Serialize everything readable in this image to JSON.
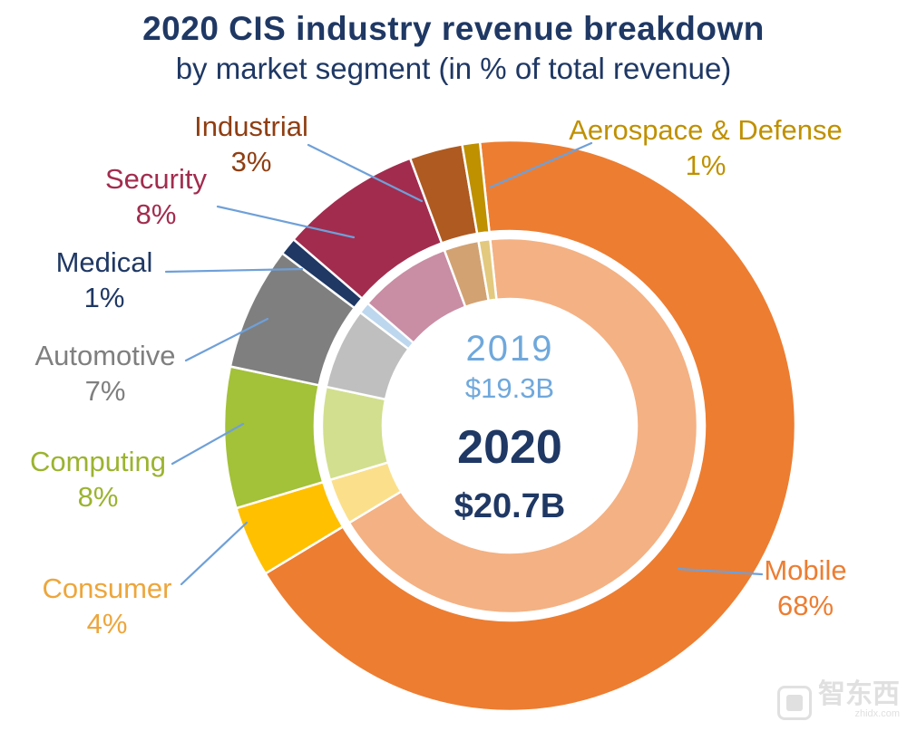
{
  "chart_data": {
    "type": "pie",
    "subtype": "double-donut",
    "title": "2020 CIS industry revenue breakdown",
    "subtitle": "by market segment (in % of total revenue)",
    "units": "% of total revenue",
    "direction": "clockwise",
    "start_angle_deg": -6,
    "legend_position": "callout-labels",
    "rings": [
      {
        "name": "outer",
        "year": "2020",
        "total": "$20.7B"
      },
      {
        "name": "inner",
        "year": "2019",
        "total": "$19.3B"
      }
    ],
    "center_labels": {
      "year_2019": "2019",
      "total_2019": "$19.3B",
      "year_2020": "2020",
      "total_2020": "$20.7B"
    },
    "segments": [
      {
        "label": "Mobile",
        "value": 68,
        "pct_label": "68%",
        "color": "#ED7D31",
        "inner_color": "#F4B183",
        "label_color": "#ED7D31"
      },
      {
        "label": "Consumer",
        "value": 4,
        "pct_label": "4%",
        "color": "#FFC000",
        "inner_color": "#FBDF8B",
        "label_color": "#EDA63C"
      },
      {
        "label": "Computing",
        "value": 8,
        "pct_label": "8%",
        "color": "#A3C139",
        "inner_color": "#D2DF8E",
        "label_color": "#9BB32F"
      },
      {
        "label": "Automotive",
        "value": 7,
        "pct_label": "7%",
        "color": "#7F7F7F",
        "inner_color": "#BFBFBF",
        "label_color": "#7F7F7F"
      },
      {
        "label": "Medical",
        "value": 1,
        "pct_label": "1%",
        "color": "#1F3864",
        "inner_color": "#BDD7EE",
        "label_color": "#1F3864"
      },
      {
        "label": "Security",
        "value": 8,
        "pct_label": "8%",
        "color": "#A22C4E",
        "inner_color": "#C98DA4",
        "label_color": "#A22C4E"
      },
      {
        "label": "Industrial",
        "value": 3,
        "pct_label": "3%",
        "color": "#AE5A21",
        "inner_color": "#D2A273",
        "label_color": "#8F3E12"
      },
      {
        "label": "Aerospace & Defense",
        "value": 1,
        "pct_label": "1%",
        "color": "#BF9000",
        "inner_color": "#E3C97E",
        "label_color": "#BF9000"
      }
    ]
  },
  "colors": {
    "navy": "#1F3864",
    "light_blue": "#6FA8DC",
    "leader_line": "#6FA0D8",
    "background": "#FFFFFF"
  },
  "watermark": {
    "text": "智东西",
    "domain": "zhidx.com"
  }
}
